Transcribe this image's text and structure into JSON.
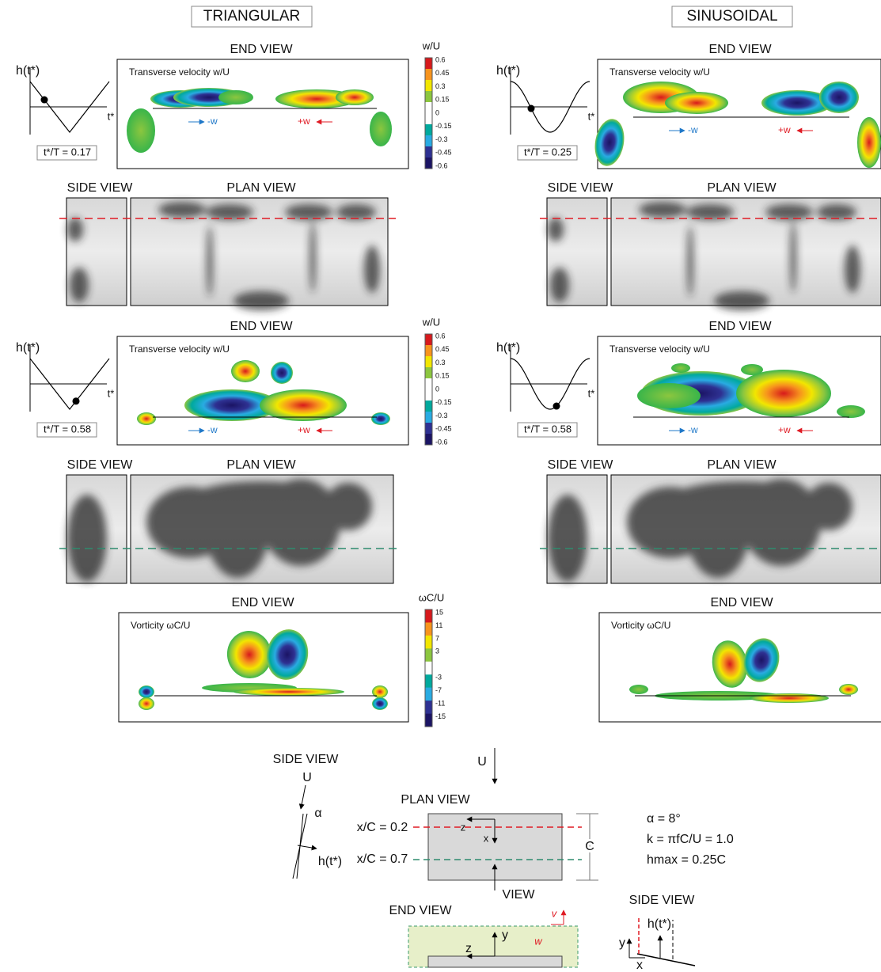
{
  "columns": [
    {
      "title": "TRIANGULAR",
      "end_view_1": {
        "title": "END VIEW",
        "label": "Transverse velocity w/U",
        "axis_y": "h(t*)",
        "axis_x": "t*",
        "time": "t*/T = 0.17",
        "minus_w": "-w",
        "plus_w": "+w"
      },
      "side_plan_1": {
        "side": "SIDE VIEW",
        "plan": "PLAN VIEW"
      },
      "end_view_2": {
        "title": "END VIEW",
        "label": "Transverse velocity w/U",
        "axis_y": "h(t*)",
        "axis_x": "t*",
        "time": "t*/T = 0.58",
        "minus_w": "-w",
        "plus_w": "+w"
      },
      "side_plan_2": {
        "side": "SIDE VIEW",
        "plan": "PLAN VIEW"
      },
      "end_view_3": {
        "title": "END VIEW",
        "label": "Vorticity ωC/U"
      }
    },
    {
      "title": "SINUSOIDAL",
      "end_view_1": {
        "title": "END VIEW",
        "label": "Transverse velocity w/U",
        "axis_y": "h(t*)",
        "axis_x": "t*",
        "time": "t*/T = 0.25",
        "minus_w": "-w",
        "plus_w": "+w"
      },
      "side_plan_1": {
        "side": "SIDE VIEW",
        "plan": "PLAN VIEW"
      },
      "end_view_2": {
        "title": "END VIEW",
        "label": "Transverse velocity w/U",
        "axis_y": "h(t*)",
        "axis_x": "t*",
        "time": "t*/T = 0.58",
        "minus_w": "-w",
        "plus_w": "+w"
      },
      "side_plan_2": {
        "side": "SIDE VIEW",
        "plan": "PLAN VIEW"
      },
      "end_view_3": {
        "title": "END VIEW",
        "label": "Vorticity ωC/U"
      }
    }
  ],
  "colorbars": [
    {
      "label": "w/U",
      "ticks": [
        0.6,
        0.45,
        0.3,
        0.15,
        0,
        -0.15,
        -0.3,
        -0.45,
        -0.6
      ]
    },
    {
      "label": "w/U",
      "ticks": [
        0.6,
        0.45,
        0.3,
        0.15,
        0,
        -0.15,
        -0.3,
        -0.45,
        -0.6
      ]
    },
    {
      "label": "ωC/U",
      "ticks": [
        15,
        11,
        7,
        3,
        -3,
        -7,
        -11,
        -15
      ]
    }
  ],
  "schematic": {
    "side_view": "SIDE VIEW",
    "u_side": "U",
    "alpha": "α",
    "h_side": "h(t*)",
    "u_plan": "U",
    "plan_view": "PLAN VIEW",
    "x02": "x/C = 0.2",
    "x07": "x/C = 0.7",
    "z_plan": "z",
    "x_plan": "x",
    "c": "C",
    "view": "VIEW",
    "params": [
      "α = 8°",
      "k = πfC/U = 1.0",
      "hmax = 0.25C"
    ],
    "end_view": "END VIEW",
    "y_end": "y",
    "z_end": "z",
    "v_end": "v",
    "w_end": "w",
    "side_view_2": "SIDE VIEW",
    "h_side_2": "h(t*)",
    "y_side_2": "y",
    "x_side_2": "x"
  }
}
